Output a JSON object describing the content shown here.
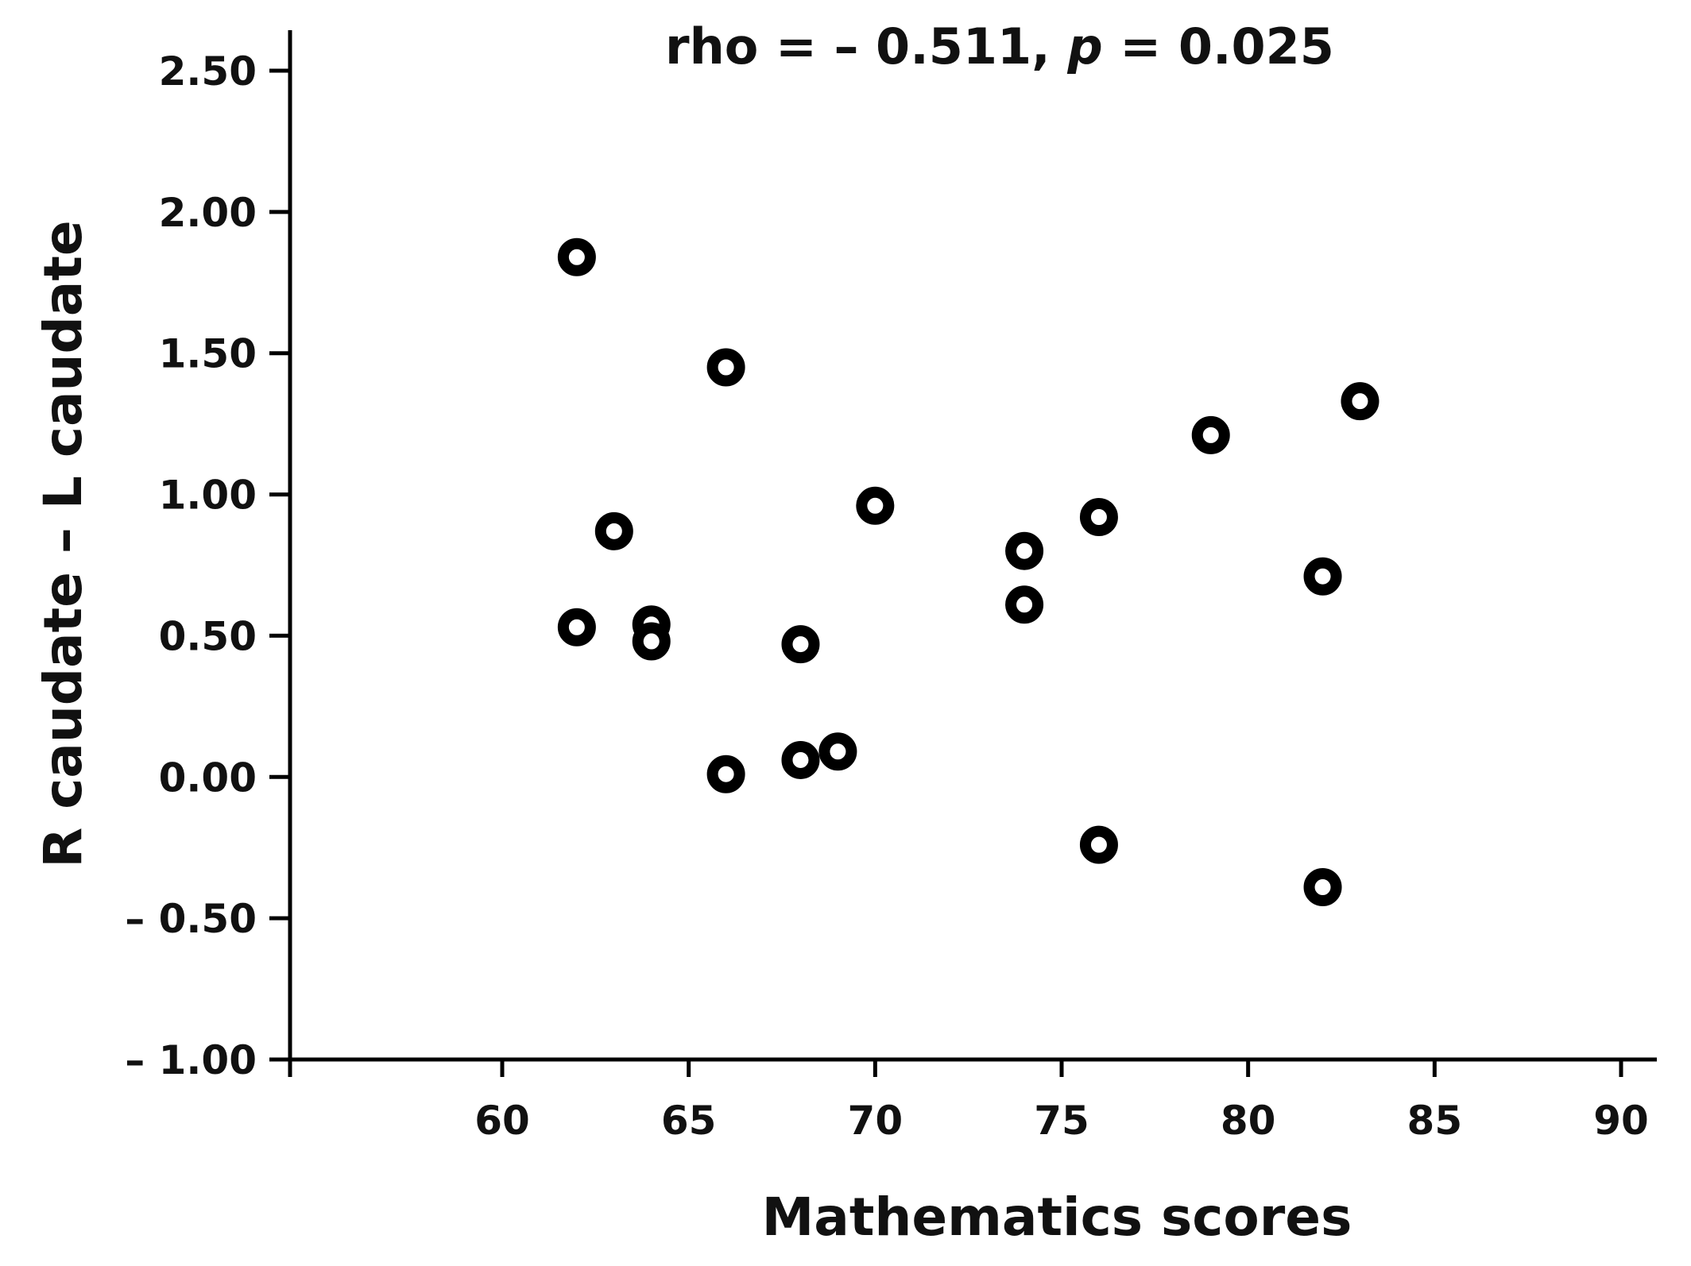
{
  "chart_data": {
    "type": "scatter",
    "title_parts": {
      "rho_text": "rho = – 0.511, ",
      "p_symbol": "p",
      "p_text": " = 0.025"
    },
    "xlabel": "Mathematics scores",
    "ylabel": "R caudate – L caudate",
    "xlim": [
      54.5,
      91.2
    ],
    "ylim": [
      -1.0,
      2.7
    ],
    "x_ticks": [
      60,
      65,
      70,
      75,
      80,
      85,
      90
    ],
    "x_tick_labels": [
      "60",
      "65",
      "70",
      "75",
      "80",
      "85",
      "90"
    ],
    "y_ticks": [
      -1.0,
      -0.5,
      0.0,
      0.5,
      1.0,
      1.5,
      2.0,
      2.5
    ],
    "y_tick_labels": [
      "– 1.00",
      "– 0.50",
      "0.00",
      "0.50",
      "1.00",
      "1.50",
      "2.00",
      "2.50"
    ],
    "grid": false,
    "legend": "none",
    "marker": "open-circle",
    "marker_color": "#000000",
    "points": [
      {
        "x": 62,
        "y": 1.84
      },
      {
        "x": 66,
        "y": 1.45
      },
      {
        "x": 63,
        "y": 0.87
      },
      {
        "x": 62,
        "y": 0.53
      },
      {
        "x": 64,
        "y": 0.54
      },
      {
        "x": 64,
        "y": 0.48
      },
      {
        "x": 68,
        "y": 0.47
      },
      {
        "x": 70,
        "y": 0.96
      },
      {
        "x": 66,
        "y": 0.01
      },
      {
        "x": 68,
        "y": 0.06
      },
      {
        "x": 69,
        "y": 0.09
      },
      {
        "x": 74,
        "y": 0.8
      },
      {
        "x": 74,
        "y": 0.61
      },
      {
        "x": 76,
        "y": 0.92
      },
      {
        "x": 76,
        "y": -0.24
      },
      {
        "x": 79,
        "y": 1.21
      },
      {
        "x": 82,
        "y": 0.71
      },
      {
        "x": 82,
        "y": -0.39
      },
      {
        "x": 83,
        "y": 1.33
      }
    ]
  }
}
